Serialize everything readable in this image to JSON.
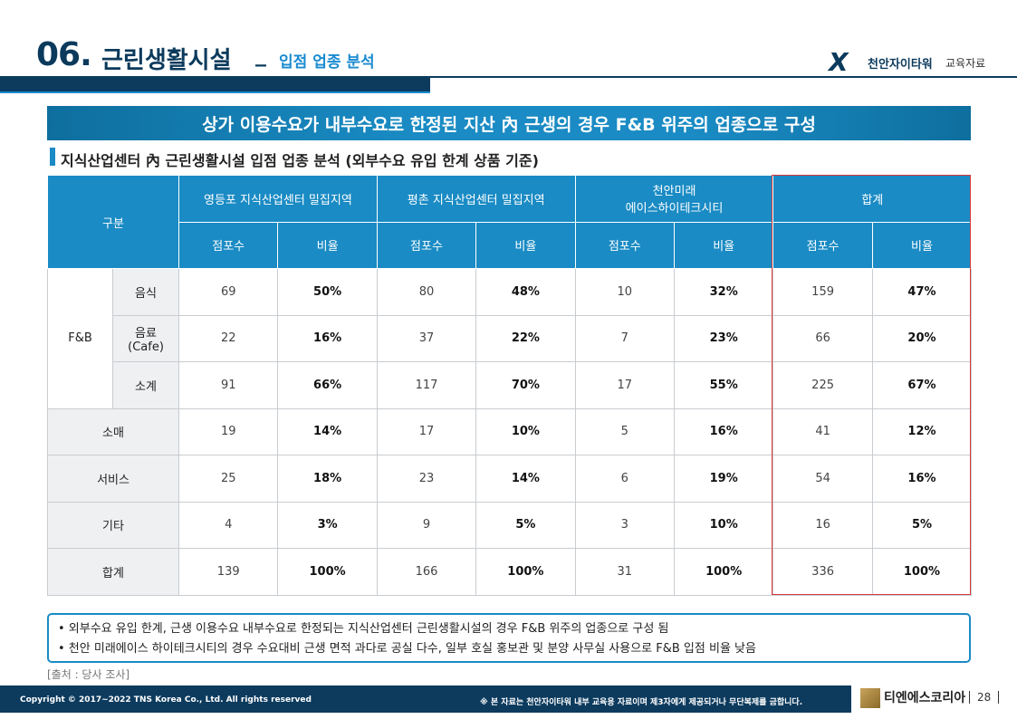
{
  "header": {
    "number": "06.",
    "title": "근린생활시설",
    "separator": "_",
    "subtitle": "입점 업종 분석",
    "logo_text": "천안자이타워",
    "logo_sub": "교육자료"
  },
  "banner": "상가 이용수요가 내부수요로 한정된 지산 內 근생의 경우 F&B 위주의 업종으로 구성",
  "section_title": "지식산업센터 內 근린생활시설 입점 업종 분석 (외부수요 유입 한계 상품 기준)",
  "table": {
    "corner": "구분",
    "groups": [
      "영등포 지식산업센터 밀집지역",
      "평촌 지식산업센터 밀집지역",
      "천안미래\n에이스하이테크시티",
      "합계"
    ],
    "subheaders": [
      "점포수",
      "비율",
      "점포수",
      "비율",
      "점포수",
      "비율",
      "점포수",
      "비율"
    ],
    "rows": [
      {
        "label": "F&B",
        "children": [
          {
            "label": "음식",
            "cells": [
              69,
              "50%",
              80,
              "48%",
              10,
              "32%",
              159,
              "47%"
            ]
          },
          {
            "label": "음료\n(Cafe)",
            "cells": [
              22,
              "16%",
              37,
              "22%",
              7,
              "23%",
              66,
              "20%"
            ]
          },
          {
            "label": "소계",
            "cells": [
              91,
              "66%",
              117,
              "70%",
              17,
              "55%",
              225,
              "67%"
            ]
          }
        ]
      },
      {
        "label": "소매",
        "cells": [
          19,
          "14%",
          17,
          "10%",
          5,
          "16%",
          41,
          "12%"
        ]
      },
      {
        "label": "서비스",
        "cells": [
          25,
          "18%",
          23,
          "14%",
          6,
          "19%",
          54,
          "16%"
        ]
      },
      {
        "label": "기타",
        "cells": [
          4,
          "3%",
          9,
          "5%",
          3,
          "10%",
          16,
          "5%"
        ]
      },
      {
        "label": "합계",
        "cells": [
          139,
          "100%",
          166,
          "100%",
          31,
          "100%",
          336,
          "100%"
        ]
      }
    ]
  },
  "notes": [
    "• 외부수요 유입 한계, 근생 이용수요 내부수요로 한정되는 지식산업센터 근린생활시설의 경우 F&B 위주의 업종으로 구성 됨",
    "• 천안 미래에이스 하이테크시티의 경우 수요대비 근생 면적 과다로 공실 다수, 일부 호실 홍보관 및 분양 사무실 사용으로 F&B 입점 비율 낮음"
  ],
  "source": "[출처 : 당사 조사]",
  "footer": {
    "copyright": "Copyright © 2017~2022 TNS Korea Co., Ltd.  All rights reserved",
    "notice": "※ 본 자료는 천안자이타워 내부 교육용 자료이며 제3자에게 제공되거나 무단복제를 금합니다.",
    "company": "티엔에스코리아",
    "page": "28"
  }
}
